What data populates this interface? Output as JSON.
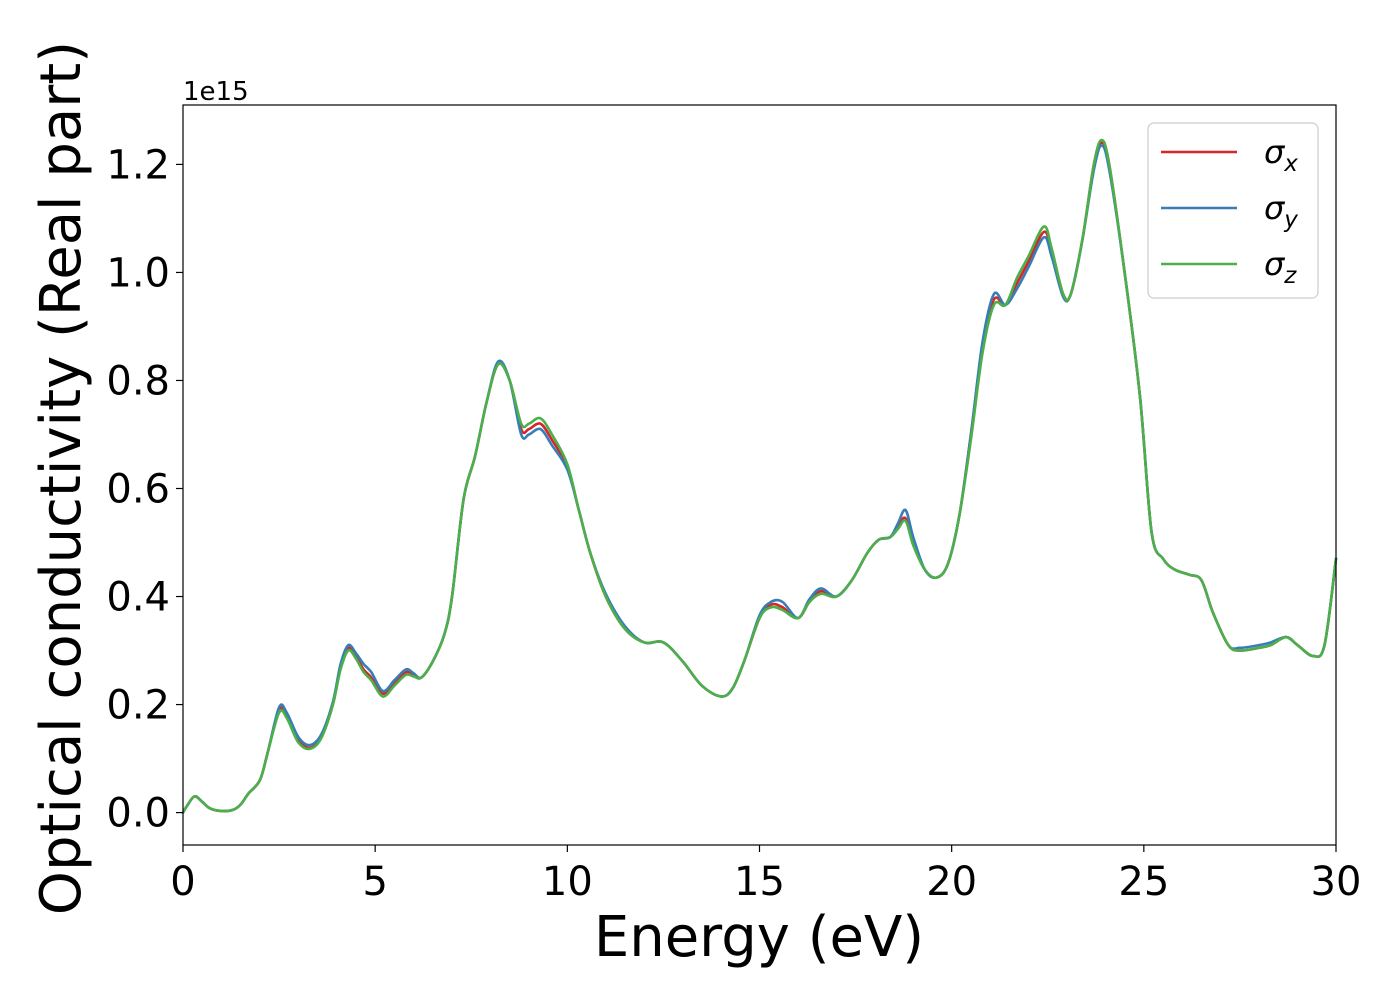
{
  "chart_data": {
    "type": "line",
    "xlabel": "Energy (eV)",
    "ylabel": "Optical conductivity (Real part)",
    "y_offset_text": "1e15",
    "xlim": [
      0,
      30
    ],
    "ylim": [
      -0.06,
      1.31
    ],
    "x_ticks": [
      0,
      5,
      10,
      15,
      20,
      25,
      30
    ],
    "x_tick_labels": [
      "0",
      "5",
      "10",
      "15",
      "20",
      "25",
      "30"
    ],
    "y_ticks": [
      0.0,
      0.2,
      0.4,
      0.6,
      0.8,
      1.0,
      1.2
    ],
    "y_tick_labels": [
      "0.0",
      "0.2",
      "0.4",
      "0.6",
      "0.8",
      "1.0",
      "1.2"
    ],
    "grid": false,
    "legend_position": "top-right",
    "series": [
      {
        "name": "σx",
        "symbol": "σ",
        "subscript": "x",
        "color": "#d62728",
        "points": [
          [
            0,
            0
          ],
          [
            0.1,
            0.012
          ],
          [
            0.3,
            0.03
          ],
          [
            0.5,
            0.02
          ],
          [
            0.7,
            0.008
          ],
          [
            1.0,
            0.003
          ],
          [
            1.3,
            0.005
          ],
          [
            1.5,
            0.015
          ],
          [
            1.7,
            0.035
          ],
          [
            2.0,
            0.06
          ],
          [
            2.2,
            0.11
          ],
          [
            2.5,
            0.19
          ],
          [
            2.7,
            0.18
          ],
          [
            3.0,
            0.135
          ],
          [
            3.3,
            0.12
          ],
          [
            3.6,
            0.14
          ],
          [
            3.9,
            0.2
          ],
          [
            4.1,
            0.27
          ],
          [
            4.3,
            0.305
          ],
          [
            4.5,
            0.29
          ],
          [
            4.7,
            0.265
          ],
          [
            4.9,
            0.25
          ],
          [
            5.2,
            0.22
          ],
          [
            5.5,
            0.24
          ],
          [
            5.8,
            0.26
          ],
          [
            6.0,
            0.255
          ],
          [
            6.2,
            0.25
          ],
          [
            6.5,
            0.28
          ],
          [
            6.8,
            0.33
          ],
          [
            7.0,
            0.4
          ],
          [
            7.3,
            0.58
          ],
          [
            7.6,
            0.66
          ],
          [
            7.9,
            0.76
          ],
          [
            8.2,
            0.83
          ],
          [
            8.5,
            0.8
          ],
          [
            8.8,
            0.71
          ],
          [
            9.0,
            0.71
          ],
          [
            9.3,
            0.72
          ],
          [
            9.6,
            0.69
          ],
          [
            10.0,
            0.64
          ],
          [
            10.3,
            0.56
          ],
          [
            10.6,
            0.48
          ],
          [
            11.0,
            0.4
          ],
          [
            11.5,
            0.34
          ],
          [
            12.0,
            0.315
          ],
          [
            12.5,
            0.315
          ],
          [
            13.0,
            0.28
          ],
          [
            13.5,
            0.235
          ],
          [
            14.0,
            0.215
          ],
          [
            14.3,
            0.23
          ],
          [
            14.6,
            0.28
          ],
          [
            15.0,
            0.36
          ],
          [
            15.3,
            0.385
          ],
          [
            15.6,
            0.38
          ],
          [
            16.0,
            0.36
          ],
          [
            16.3,
            0.39
          ],
          [
            16.6,
            0.41
          ],
          [
            17.0,
            0.4
          ],
          [
            17.4,
            0.43
          ],
          [
            17.8,
            0.48
          ],
          [
            18.1,
            0.505
          ],
          [
            18.4,
            0.51
          ],
          [
            18.6,
            0.53
          ],
          [
            18.8,
            0.545
          ],
          [
            19.0,
            0.5
          ],
          [
            19.3,
            0.45
          ],
          [
            19.6,
            0.435
          ],
          [
            19.9,
            0.46
          ],
          [
            20.2,
            0.55
          ],
          [
            20.5,
            0.7
          ],
          [
            20.8,
            0.86
          ],
          [
            21.1,
            0.95
          ],
          [
            21.4,
            0.94
          ],
          [
            21.7,
            0.98
          ],
          [
            22.0,
            1.02
          ],
          [
            22.4,
            1.075
          ],
          [
            22.6,
            1.04
          ],
          [
            22.9,
            0.96
          ],
          [
            23.1,
            0.96
          ],
          [
            23.4,
            1.06
          ],
          [
            23.7,
            1.2
          ],
          [
            23.9,
            1.24
          ],
          [
            24.1,
            1.2
          ],
          [
            24.5,
            1.0
          ],
          [
            24.9,
            0.77
          ],
          [
            25.2,
            0.52
          ],
          [
            25.5,
            0.47
          ],
          [
            25.8,
            0.45
          ],
          [
            26.2,
            0.44
          ],
          [
            26.5,
            0.43
          ],
          [
            26.8,
            0.37
          ],
          [
            27.2,
            0.31
          ],
          [
            27.5,
            0.3
          ],
          [
            28.0,
            0.305
          ],
          [
            28.3,
            0.31
          ],
          [
            28.7,
            0.325
          ],
          [
            29.0,
            0.31
          ],
          [
            29.4,
            0.29
          ],
          [
            29.7,
            0.31
          ],
          [
            30.0,
            0.47
          ]
        ]
      },
      {
        "name": "σy",
        "symbol": "σ",
        "subscript": "y",
        "color": "#377eb8",
        "points": [
          [
            0,
            0
          ],
          [
            0.1,
            0.012
          ],
          [
            0.3,
            0.03
          ],
          [
            0.5,
            0.02
          ],
          [
            0.7,
            0.008
          ],
          [
            1.0,
            0.003
          ],
          [
            1.3,
            0.005
          ],
          [
            1.5,
            0.015
          ],
          [
            1.7,
            0.035
          ],
          [
            2.0,
            0.06
          ],
          [
            2.2,
            0.11
          ],
          [
            2.5,
            0.195
          ],
          [
            2.7,
            0.185
          ],
          [
            3.0,
            0.14
          ],
          [
            3.3,
            0.125
          ],
          [
            3.6,
            0.145
          ],
          [
            3.9,
            0.205
          ],
          [
            4.1,
            0.275
          ],
          [
            4.3,
            0.31
          ],
          [
            4.5,
            0.295
          ],
          [
            4.7,
            0.275
          ],
          [
            4.9,
            0.26
          ],
          [
            5.2,
            0.225
          ],
          [
            5.5,
            0.245
          ],
          [
            5.8,
            0.265
          ],
          [
            6.0,
            0.258
          ],
          [
            6.2,
            0.25
          ],
          [
            6.5,
            0.28
          ],
          [
            6.8,
            0.33
          ],
          [
            7.0,
            0.4
          ],
          [
            7.3,
            0.58
          ],
          [
            7.6,
            0.66
          ],
          [
            7.9,
            0.76
          ],
          [
            8.2,
            0.835
          ],
          [
            8.5,
            0.8
          ],
          [
            8.8,
            0.7
          ],
          [
            9.0,
            0.7
          ],
          [
            9.3,
            0.71
          ],
          [
            9.6,
            0.68
          ],
          [
            10.0,
            0.635
          ],
          [
            10.3,
            0.56
          ],
          [
            10.6,
            0.48
          ],
          [
            11.0,
            0.405
          ],
          [
            11.5,
            0.345
          ],
          [
            12.0,
            0.315
          ],
          [
            12.5,
            0.315
          ],
          [
            13.0,
            0.28
          ],
          [
            13.5,
            0.235
          ],
          [
            14.0,
            0.215
          ],
          [
            14.3,
            0.23
          ],
          [
            14.6,
            0.28
          ],
          [
            15.0,
            0.365
          ],
          [
            15.3,
            0.39
          ],
          [
            15.6,
            0.39
          ],
          [
            16.0,
            0.36
          ],
          [
            16.3,
            0.395
          ],
          [
            16.6,
            0.415
          ],
          [
            17.0,
            0.4
          ],
          [
            17.4,
            0.43
          ],
          [
            17.8,
            0.48
          ],
          [
            18.1,
            0.505
          ],
          [
            18.4,
            0.51
          ],
          [
            18.6,
            0.535
          ],
          [
            18.8,
            0.56
          ],
          [
            19.0,
            0.51
          ],
          [
            19.3,
            0.45
          ],
          [
            19.6,
            0.435
          ],
          [
            19.9,
            0.46
          ],
          [
            20.2,
            0.55
          ],
          [
            20.5,
            0.7
          ],
          [
            20.8,
            0.87
          ],
          [
            21.1,
            0.96
          ],
          [
            21.4,
            0.94
          ],
          [
            21.7,
            0.97
          ],
          [
            22.0,
            1.01
          ],
          [
            22.4,
            1.065
          ],
          [
            22.6,
            1.03
          ],
          [
            22.9,
            0.955
          ],
          [
            23.1,
            0.96
          ],
          [
            23.4,
            1.06
          ],
          [
            23.7,
            1.19
          ],
          [
            23.9,
            1.235
          ],
          [
            24.1,
            1.19
          ],
          [
            24.5,
            1.0
          ],
          [
            24.9,
            0.77
          ],
          [
            25.2,
            0.52
          ],
          [
            25.5,
            0.47
          ],
          [
            25.8,
            0.45
          ],
          [
            26.2,
            0.44
          ],
          [
            26.5,
            0.43
          ],
          [
            26.8,
            0.37
          ],
          [
            27.2,
            0.31
          ],
          [
            27.5,
            0.305
          ],
          [
            28.0,
            0.31
          ],
          [
            28.3,
            0.315
          ],
          [
            28.7,
            0.325
          ],
          [
            29.0,
            0.31
          ],
          [
            29.4,
            0.29
          ],
          [
            29.7,
            0.31
          ],
          [
            30.0,
            0.47
          ]
        ]
      },
      {
        "name": "σz",
        "symbol": "σ",
        "subscript": "z",
        "color": "#4daf4a",
        "points": [
          [
            0,
            0
          ],
          [
            0.1,
            0.012
          ],
          [
            0.3,
            0.03
          ],
          [
            0.5,
            0.02
          ],
          [
            0.7,
            0.008
          ],
          [
            1.0,
            0.003
          ],
          [
            1.3,
            0.005
          ],
          [
            1.5,
            0.015
          ],
          [
            1.7,
            0.035
          ],
          [
            2.0,
            0.06
          ],
          [
            2.2,
            0.11
          ],
          [
            2.5,
            0.185
          ],
          [
            2.7,
            0.175
          ],
          [
            3.0,
            0.13
          ],
          [
            3.3,
            0.118
          ],
          [
            3.6,
            0.138
          ],
          [
            3.9,
            0.2
          ],
          [
            4.1,
            0.265
          ],
          [
            4.3,
            0.3
          ],
          [
            4.5,
            0.285
          ],
          [
            4.7,
            0.26
          ],
          [
            4.9,
            0.245
          ],
          [
            5.2,
            0.215
          ],
          [
            5.5,
            0.235
          ],
          [
            5.8,
            0.255
          ],
          [
            6.0,
            0.252
          ],
          [
            6.2,
            0.25
          ],
          [
            6.5,
            0.28
          ],
          [
            6.8,
            0.33
          ],
          [
            7.0,
            0.4
          ],
          [
            7.3,
            0.58
          ],
          [
            7.6,
            0.66
          ],
          [
            7.9,
            0.76
          ],
          [
            8.2,
            0.83
          ],
          [
            8.5,
            0.8
          ],
          [
            8.8,
            0.72
          ],
          [
            9.0,
            0.72
          ],
          [
            9.3,
            0.73
          ],
          [
            9.6,
            0.7
          ],
          [
            10.0,
            0.645
          ],
          [
            10.3,
            0.56
          ],
          [
            10.6,
            0.48
          ],
          [
            11.0,
            0.4
          ],
          [
            11.5,
            0.34
          ],
          [
            12.0,
            0.315
          ],
          [
            12.5,
            0.315
          ],
          [
            13.0,
            0.28
          ],
          [
            13.5,
            0.235
          ],
          [
            14.0,
            0.215
          ],
          [
            14.3,
            0.23
          ],
          [
            14.6,
            0.28
          ],
          [
            15.0,
            0.36
          ],
          [
            15.3,
            0.38
          ],
          [
            15.6,
            0.375
          ],
          [
            16.0,
            0.36
          ],
          [
            16.3,
            0.39
          ],
          [
            16.6,
            0.405
          ],
          [
            17.0,
            0.4
          ],
          [
            17.4,
            0.43
          ],
          [
            17.8,
            0.48
          ],
          [
            18.1,
            0.505
          ],
          [
            18.4,
            0.51
          ],
          [
            18.6,
            0.525
          ],
          [
            18.8,
            0.54
          ],
          [
            19.0,
            0.495
          ],
          [
            19.3,
            0.45
          ],
          [
            19.6,
            0.435
          ],
          [
            19.9,
            0.46
          ],
          [
            20.2,
            0.55
          ],
          [
            20.5,
            0.69
          ],
          [
            20.8,
            0.85
          ],
          [
            21.1,
            0.94
          ],
          [
            21.4,
            0.94
          ],
          [
            21.7,
            0.99
          ],
          [
            22.0,
            1.03
          ],
          [
            22.4,
            1.085
          ],
          [
            22.6,
            1.045
          ],
          [
            22.9,
            0.96
          ],
          [
            23.1,
            0.96
          ],
          [
            23.4,
            1.06
          ],
          [
            23.7,
            1.2
          ],
          [
            23.9,
            1.245
          ],
          [
            24.1,
            1.2
          ],
          [
            24.5,
            1.0
          ],
          [
            24.9,
            0.77
          ],
          [
            25.2,
            0.52
          ],
          [
            25.5,
            0.47
          ],
          [
            25.8,
            0.45
          ],
          [
            26.2,
            0.44
          ],
          [
            26.5,
            0.43
          ],
          [
            26.8,
            0.37
          ],
          [
            27.2,
            0.31
          ],
          [
            27.5,
            0.3
          ],
          [
            28.0,
            0.305
          ],
          [
            28.3,
            0.31
          ],
          [
            28.7,
            0.325
          ],
          [
            29.0,
            0.31
          ],
          [
            29.4,
            0.29
          ],
          [
            29.7,
            0.31
          ],
          [
            30.0,
            0.47
          ]
        ]
      }
    ]
  }
}
